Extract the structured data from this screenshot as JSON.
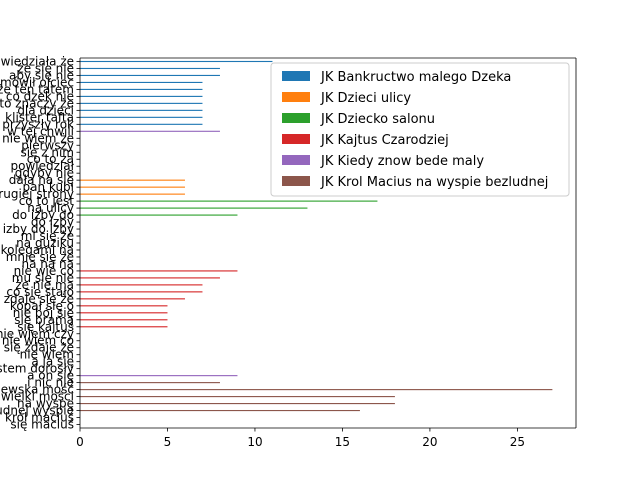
{
  "chart_data": {
    "type": "bar",
    "orientation": "horizontal",
    "title": "",
    "xlabel": "",
    "ylabel": "",
    "xlim": [
      0,
      28.35
    ],
    "x_ticks": [
      0,
      5,
      10,
      15,
      20,
      25
    ],
    "grid": false,
    "legend_position": "top-right",
    "series": [
      {
        "name": "JK Bankructwo malego Dzeka",
        "color": "#1f77b4"
      },
      {
        "name": "JK Dzieci ulicy",
        "color": "#ff7f0e"
      },
      {
        "name": "JK Dziecko salonu",
        "color": "#2ca02c"
      },
      {
        "name": "JK Kajtus Czarodziej",
        "color": "#d62728"
      },
      {
        "name": "JK Kiedy znow bede maly",
        "color": "#9467bd"
      },
      {
        "name": "JK Krol Macius na wyspie bezludnej",
        "color": "#8c564b"
      }
    ],
    "bars": [
      {
        "label": "powiedziała że",
        "value": 11,
        "series": 0
      },
      {
        "label": "że się nie",
        "value": 8,
        "series": 0
      },
      {
        "label": "aby się nie",
        "value": 8,
        "series": 0
      },
      {
        "label": "mówił ojciec",
        "value": 7,
        "series": 0
      },
      {
        "label": "że ten tatem",
        "value": 7,
        "series": 0
      },
      {
        "label": "co dzek nie",
        "value": 7,
        "series": 0
      },
      {
        "label": "to znaczy że",
        "value": 7,
        "series": 0
      },
      {
        "label": "dla dzieci",
        "value": 7,
        "series": 0
      },
      {
        "label": "klister tafta",
        "value": 7,
        "series": 0
      },
      {
        "label": "przyszły rok",
        "value": 7,
        "series": 0
      },
      {
        "label": "w tej chwili",
        "value": 8,
        "series": 4
      },
      {
        "label": "nie wiem że",
        "value": 0,
        "series": 1
      },
      {
        "label": "pierwszy",
        "value": 0,
        "series": 1
      },
      {
        "label": "się z nim",
        "value": 0,
        "series": 1
      },
      {
        "label": "co to za",
        "value": 0,
        "series": 1
      },
      {
        "label": "powiedział",
        "value": 0,
        "series": 1
      },
      {
        "label": "gdyby nie",
        "value": 0,
        "series": 1
      },
      {
        "label": "dała na się",
        "value": 6,
        "series": 1
      },
      {
        "label": "pan kubi",
        "value": 6,
        "series": 1
      },
      {
        "label": "z drugiej strony",
        "value": 6,
        "series": 1
      },
      {
        "label": "co to jest",
        "value": 17,
        "series": 2
      },
      {
        "label": "na ulicy",
        "value": 13,
        "series": 2
      },
      {
        "label": "do izby do",
        "value": 9,
        "series": 2
      },
      {
        "label": "do izby",
        "value": 0,
        "series": 2
      },
      {
        "label": "izby do izby",
        "value": 0,
        "series": 2
      },
      {
        "label": "mi się że",
        "value": 0,
        "series": 2
      },
      {
        "label": "na guziku",
        "value": 0,
        "series": 2
      },
      {
        "label": "z kolegami na",
        "value": 0,
        "series": 2
      },
      {
        "label": "mnie się że",
        "value": 0,
        "series": 2
      },
      {
        "label": "na na na",
        "value": 0,
        "series": 2
      },
      {
        "label": "nie wie co",
        "value": 9,
        "series": 3
      },
      {
        "label": "mu się nie",
        "value": 8,
        "series": 3
      },
      {
        "label": "że nie ma",
        "value": 7,
        "series": 3
      },
      {
        "label": "co się stało",
        "value": 7,
        "series": 3
      },
      {
        "label": "zdaje się że",
        "value": 6,
        "series": 3
      },
      {
        "label": "kopał się o",
        "value": 5,
        "series": 3
      },
      {
        "label": "nie bój się",
        "value": 5,
        "series": 3
      },
      {
        "label": "się bramą",
        "value": 5,
        "series": 3
      },
      {
        "label": "się kajtuś",
        "value": 5,
        "series": 3
      },
      {
        "label": "nie wiem czy",
        "value": 0,
        "series": 4
      },
      {
        "label": "nie wiem co",
        "value": 0,
        "series": 4
      },
      {
        "label": "mi się zdaje że",
        "value": 0,
        "series": 4
      },
      {
        "label": "nie wiem",
        "value": 0,
        "series": 4
      },
      {
        "label": "a ja się",
        "value": 0,
        "series": 4
      },
      {
        "label": "jestem dorosły",
        "value": 0,
        "series": 4
      },
      {
        "label": "a on się",
        "value": 9,
        "series": 4
      },
      {
        "label": "i nic nie",
        "value": 8,
        "series": 5
      },
      {
        "label": "królewska mość",
        "value": 27,
        "series": 5
      },
      {
        "label": "wielki mości",
        "value": 18,
        "series": 5
      },
      {
        "label": "na wyspę",
        "value": 18,
        "series": 5
      },
      {
        "label": "na bezludnej wyspie",
        "value": 16,
        "series": 5
      },
      {
        "label": "król maciuś",
        "value": 0,
        "series": 5
      },
      {
        "label": "się maciuś",
        "value": 0,
        "series": 5
      }
    ]
  }
}
